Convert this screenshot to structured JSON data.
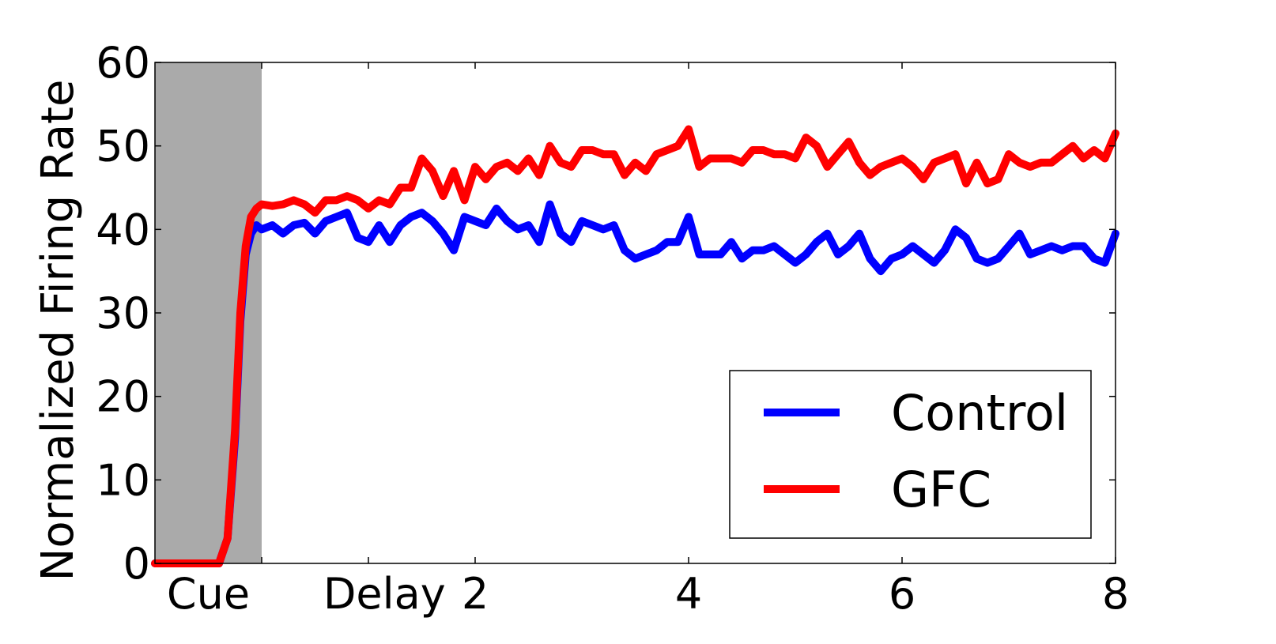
{
  "chart_data": {
    "type": "line",
    "title": "",
    "xlabel": "",
    "ylabel": "Normalized Firing Rate",
    "xlim": [
      -1,
      8
    ],
    "ylim": [
      0,
      60
    ],
    "y_ticks": [
      0,
      10,
      20,
      30,
      40,
      50,
      60
    ],
    "x_ticks": [
      2,
      4,
      6,
      8
    ],
    "x_category_labels": [
      {
        "label": "Cue",
        "x": -0.5
      },
      {
        "label": "Delay",
        "x": 1.15
      }
    ],
    "shaded_region": {
      "x_start": -1,
      "x_end": 0,
      "color": "#aaaaaa"
    },
    "grid": false,
    "legend": {
      "position": "lower-right"
    },
    "series": [
      {
        "name": "Control",
        "color": "#0000ff",
        "x": [
          -1.0,
          -0.4,
          -0.32,
          -0.25,
          -0.2,
          -0.15,
          -0.1,
          -0.05,
          0.0,
          0.1,
          0.2,
          0.3,
          0.4,
          0.5,
          0.6,
          0.7,
          0.8,
          0.9,
          1.0,
          1.1,
          1.2,
          1.3,
          1.4,
          1.5,
          1.6,
          1.7,
          1.8,
          1.9,
          2.0,
          2.1,
          2.2,
          2.3,
          2.4,
          2.5,
          2.6,
          2.7,
          2.8,
          2.9,
          3.0,
          3.1,
          3.2,
          3.3,
          3.4,
          3.5,
          3.6,
          3.7,
          3.8,
          3.9,
          4.0,
          4.1,
          4.2,
          4.3,
          4.4,
          4.5,
          4.6,
          4.7,
          4.8,
          4.9,
          5.0,
          5.1,
          5.2,
          5.3,
          5.4,
          5.5,
          5.6,
          5.7,
          5.8,
          5.9,
          6.0,
          6.1,
          6.2,
          6.3,
          6.4,
          6.5,
          6.6,
          6.7,
          6.8,
          6.9,
          7.0,
          7.1,
          7.2,
          7.3,
          7.4,
          7.5,
          7.6,
          7.7,
          7.8,
          7.9,
          8.0
        ],
        "y": [
          0,
          0,
          3,
          15,
          29,
          37,
          39.5,
          40.5,
          40,
          40.5,
          39.5,
          40.5,
          40.8,
          39.5,
          41,
          41.5,
          42,
          39,
          38.5,
          40.5,
          38.5,
          40.5,
          41.5,
          42,
          41,
          39.5,
          37.5,
          41.5,
          41,
          40.5,
          42.5,
          41,
          40,
          40.5,
          38.5,
          43,
          39.5,
          38.5,
          41,
          40.5,
          40,
          40.5,
          37.5,
          36.5,
          37,
          37.5,
          38.5,
          38.5,
          41.5,
          37,
          37,
          37,
          38.5,
          36.5,
          37.5,
          37.5,
          38,
          37,
          36,
          37,
          38.5,
          39.5,
          37,
          38,
          39.5,
          36.5,
          35,
          36.5,
          37,
          38,
          37,
          36,
          37.5,
          40,
          39,
          36.5,
          36,
          36.5,
          38,
          39.5,
          37,
          37.5,
          38,
          37.5,
          38,
          38,
          36.5,
          36,
          39.5
        ]
      },
      {
        "name": "GFC",
        "color": "#ff0000",
        "x": [
          -1.0,
          -0.4,
          -0.32,
          -0.25,
          -0.2,
          -0.15,
          -0.1,
          -0.05,
          0.0,
          0.1,
          0.2,
          0.3,
          0.4,
          0.5,
          0.6,
          0.7,
          0.8,
          0.9,
          1.0,
          1.1,
          1.2,
          1.3,
          1.4,
          1.5,
          1.6,
          1.7,
          1.8,
          1.9,
          2.0,
          2.1,
          2.2,
          2.3,
          2.4,
          2.5,
          2.6,
          2.7,
          2.8,
          2.9,
          3.0,
          3.1,
          3.2,
          3.3,
          3.4,
          3.5,
          3.6,
          3.7,
          3.8,
          3.9,
          4.0,
          4.1,
          4.2,
          4.3,
          4.4,
          4.5,
          4.6,
          4.7,
          4.8,
          4.9,
          5.0,
          5.1,
          5.2,
          5.3,
          5.4,
          5.5,
          5.6,
          5.7,
          5.8,
          5.9,
          6.0,
          6.1,
          6.2,
          6.3,
          6.4,
          6.5,
          6.6,
          6.7,
          6.8,
          6.9,
          7.0,
          7.1,
          7.2,
          7.3,
          7.4,
          7.5,
          7.6,
          7.7,
          7.8,
          7.9,
          8.0
        ],
        "y": [
          0,
          0,
          3,
          16,
          30,
          38,
          41.5,
          42.5,
          43,
          42.8,
          43,
          43.5,
          43,
          42,
          43.5,
          43.5,
          44,
          43.5,
          42.5,
          43.5,
          43,
          45,
          45,
          48.5,
          47,
          44,
          47,
          43.5,
          47.5,
          46,
          47.5,
          48,
          47,
          48.5,
          46.5,
          50,
          48,
          47.5,
          49.5,
          49.5,
          49,
          49,
          46.5,
          48,
          47,
          49,
          49.5,
          50,
          52,
          47.5,
          48.5,
          48.5,
          48.5,
          48,
          49.5,
          49.5,
          49,
          49,
          48.5,
          51,
          50,
          47.5,
          49,
          50.5,
          48,
          46.5,
          47.5,
          48,
          48.5,
          47.5,
          46,
          48,
          48.5,
          49,
          45.5,
          48,
          45.5,
          46,
          49,
          48,
          47.5,
          48,
          48,
          49,
          50,
          48.5,
          49.5,
          48.5,
          51.5
        ]
      }
    ]
  }
}
